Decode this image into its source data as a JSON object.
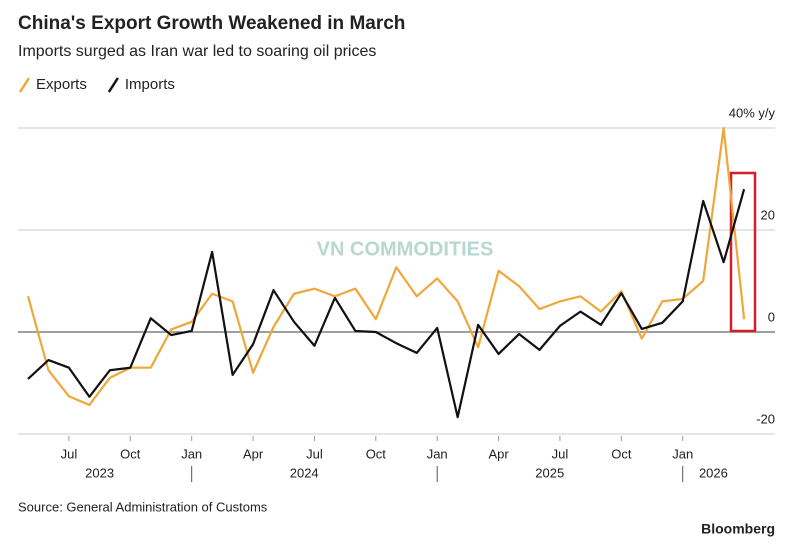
{
  "chart_data": {
    "type": "line",
    "title": "China's Export Growth Weakened in March",
    "subtitle": "Imports surged as Iran war led to soaring oil prices",
    "source": "Source: General Administration of Customs",
    "brand": "Bloomberg",
    "watermark": "VN COMMODITIES",
    "categories": [
      null,
      null,
      "Jul",
      null,
      null,
      "Oct",
      null,
      null,
      "Jan",
      null,
      null,
      "Apr",
      null,
      null,
      "Jul",
      null,
      null,
      "Oct",
      null,
      null,
      "Jan",
      null,
      null,
      "Apr",
      null,
      null,
      "Jul",
      null,
      null,
      "Oct",
      null,
      null,
      "Jan",
      null,
      null,
      null
    ],
    "years": [
      "2023",
      "2024",
      "2025",
      "2026"
    ],
    "series": [
      {
        "name": "Exports",
        "color": "#f0a73a",
        "values": [
          7,
          -7.5,
          -12.6,
          -14.3,
          -9,
          -7,
          -7,
          0.5,
          2,
          7.5,
          6,
          -8,
          1,
          7.5,
          8.5,
          7,
          8.5,
          2.5,
          12.7,
          7,
          10.5,
          6,
          -3,
          12,
          9,
          4.5,
          6,
          7,
          4,
          8,
          -1.3,
          6,
          6.5,
          10,
          40,
          2.5
        ]
      },
      {
        "name": "Imports",
        "color": "#111111",
        "values": [
          -9.2,
          -5.5,
          -7,
          -12.7,
          -7.5,
          -7,
          2.7,
          -0.6,
          0.2,
          15.7,
          -8.4,
          -2.4,
          8.2,
          2,
          -2.7,
          6.7,
          0.2,
          0,
          -2.2,
          -4.1,
          0.8,
          -16.7,
          1.4,
          -4.3,
          -0.4,
          -3.5,
          1.2,
          4,
          1.4,
          7.6,
          0.6,
          1.8,
          6,
          25.7,
          13.7,
          28
        ]
      }
    ],
    "ylim": [
      -25,
      42
    ],
    "yticks": [
      -20,
      0,
      20,
      {
        "value": 40,
        "label": "40% y/y"
      }
    ],
    "grid": true
  }
}
